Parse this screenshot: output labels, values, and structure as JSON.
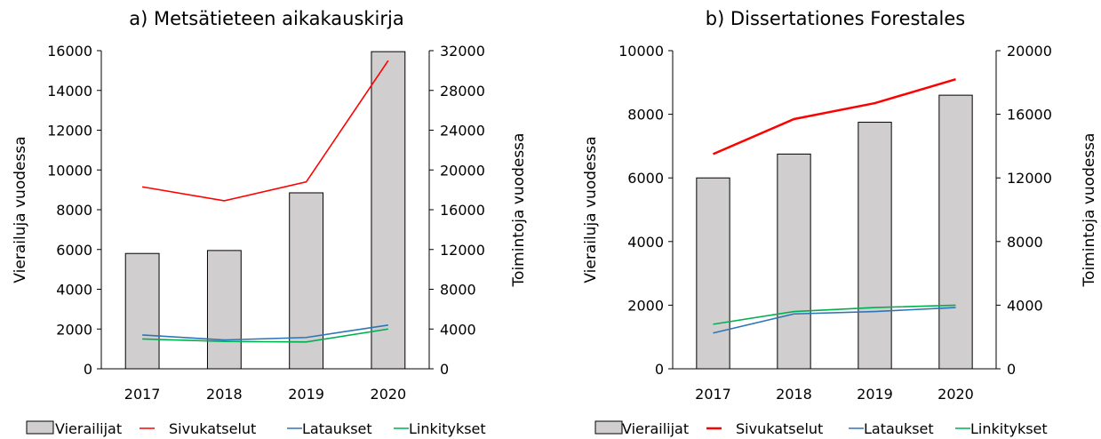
{
  "chart_data": [
    {
      "type": "bar",
      "title": "a) Metsätieteen aikakauskirja",
      "categories": [
        "2017",
        "2018",
        "2019",
        "2020"
      ],
      "ylabel": "Vierailuja vuodessa",
      "y2label": "Toimintoja vuodessa",
      "ylim": [
        0,
        16000
      ],
      "y2lim": [
        0,
        32000
      ],
      "yticks": [
        "0",
        "2000",
        "4000",
        "6000",
        "8000",
        "10000",
        "12000",
        "14000",
        "16000"
      ],
      "y2ticks": [
        "0",
        "4000",
        "8000",
        "12000",
        "16000",
        "20000",
        "24000",
        "28000",
        "32000"
      ],
      "series": [
        {
          "name": "Vierailijat",
          "axis": "left",
          "kind": "bar",
          "color": "#d0cece",
          "values": [
            5800,
            5950,
            8850,
            15950
          ]
        },
        {
          "name": "Sivukatselut",
          "axis": "right",
          "kind": "line",
          "color": "#ff0000",
          "values": [
            18300,
            16900,
            18800,
            31000
          ]
        },
        {
          "name": "Lataukset",
          "axis": "right",
          "kind": "line",
          "color": "#2e75b6",
          "values": [
            3400,
            2900,
            3150,
            4400
          ]
        },
        {
          "name": "Linkitykset",
          "axis": "right",
          "kind": "line",
          "color": "#00b050",
          "values": [
            3000,
            2750,
            2700,
            4000
          ]
        }
      ],
      "legend_position": "bottom"
    },
    {
      "type": "bar",
      "title": "b) Dissertationes Forestales",
      "categories": [
        "2017",
        "2018",
        "2019",
        "2020"
      ],
      "ylabel": "Vierailuja vuodessa",
      "y2label": "Toimintoja vuodessa",
      "ylim": [
        0,
        10000
      ],
      "y2lim": [
        0,
        20000
      ],
      "yticks": [
        "0",
        "2000",
        "4000",
        "6000",
        "8000",
        "10000"
      ],
      "y2ticks": [
        "0",
        "4000",
        "8000",
        "12000",
        "16000",
        "20000"
      ],
      "series": [
        {
          "name": "Vierailijat",
          "axis": "left",
          "kind": "bar",
          "color": "#d0cece",
          "values": [
            6000,
            6750,
            7750,
            8600
          ]
        },
        {
          "name": "Sivukatselut",
          "axis": "right",
          "kind": "line",
          "color": "#ff0000",
          "values": [
            13500,
            15700,
            16700,
            18200
          ]
        },
        {
          "name": "Lataukset",
          "axis": "right",
          "kind": "line",
          "color": "#2e75b6",
          "values": [
            2250,
            3450,
            3600,
            3850
          ]
        },
        {
          "name": "Linkitykset",
          "axis": "right",
          "kind": "line",
          "color": "#00b050",
          "values": [
            2800,
            3600,
            3850,
            4000
          ]
        }
      ],
      "legend_position": "bottom"
    }
  ]
}
